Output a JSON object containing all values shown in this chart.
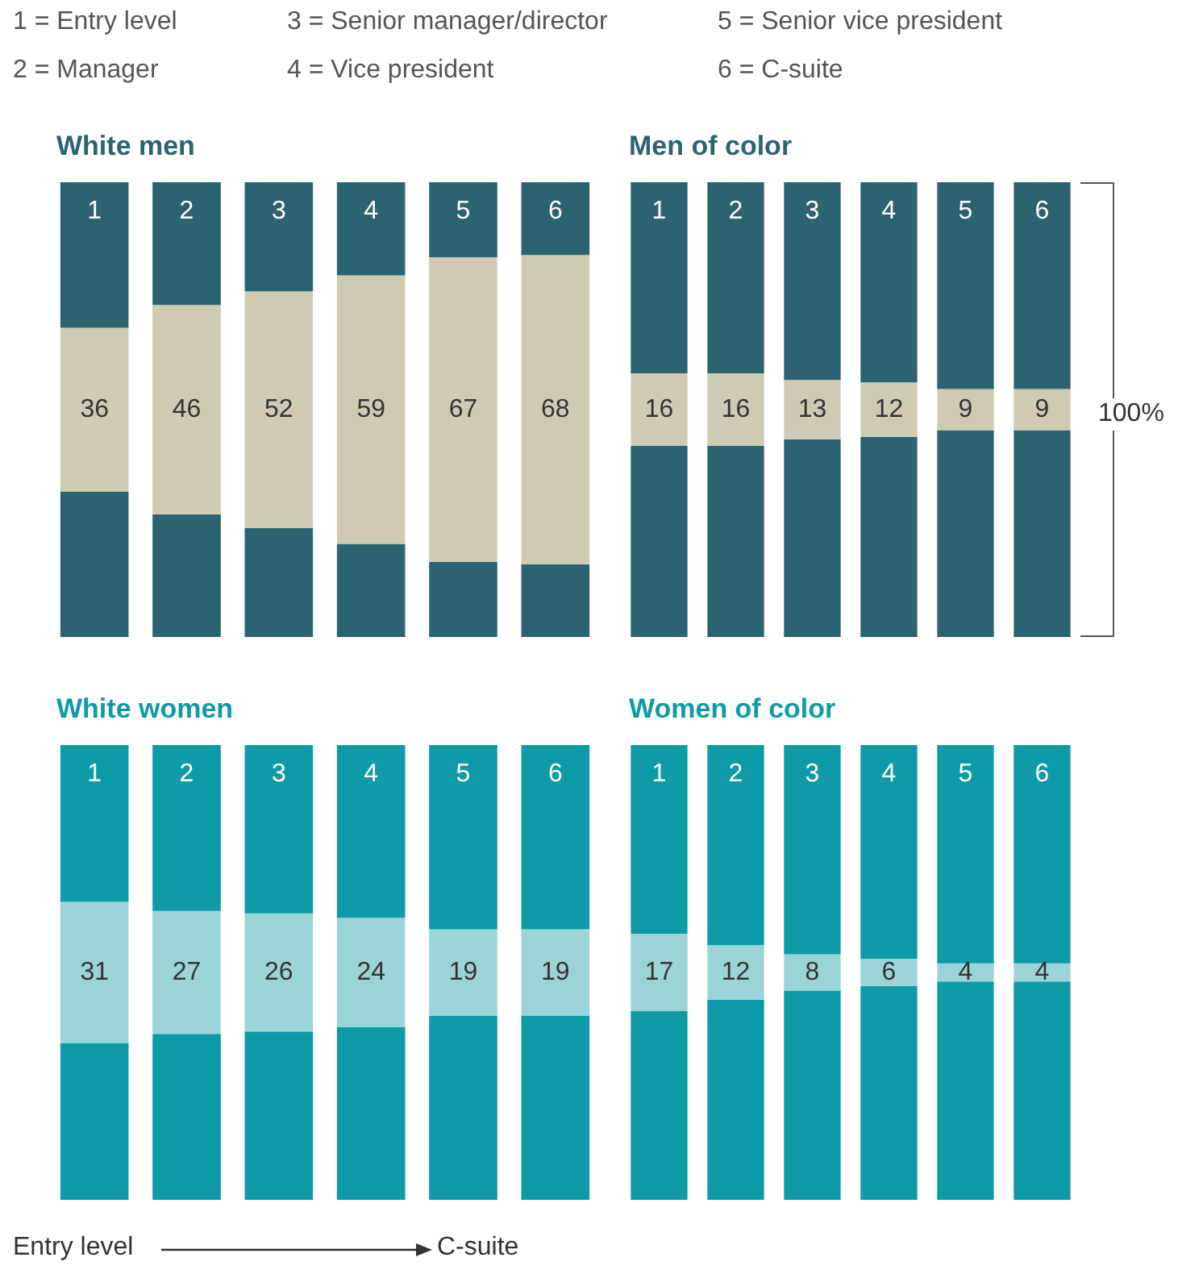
{
  "chart_data": [
    {
      "type": "bar",
      "title": "White men",
      "categories": [
        "1",
        "2",
        "3",
        "4",
        "5",
        "6"
      ],
      "stacked": true,
      "ylim": [
        0,
        100
      ],
      "tick_labels": "x",
      "annotations": [
        "1 = Entry level",
        "2 = Manager",
        "3 = Senior manager/director",
        "4 = Vice president",
        "5 = Senior vice president",
        "6 = C-suite"
      ],
      "series": [
        {
          "color": "#2b6470",
          "values": [
            32,
            27,
            24,
            20.5,
            16.5,
            16
          ]
        },
        {
          "color": "#cfcbb3",
          "values": [
            36,
            46,
            52,
            59,
            67,
            68
          ],
          "value_labels": [
            "36",
            "46",
            "52",
            "59",
            "67",
            "68"
          ]
        },
        {
          "color": "#2b6470",
          "values": [
            32,
            27,
            24,
            20.5,
            16.5,
            16
          ]
        }
      ]
    },
    {
      "type": "bar",
      "title": "Men of color",
      "categories": [
        "1",
        "2",
        "3",
        "4",
        "5",
        "6"
      ],
      "stacked": true,
      "ylim": [
        0,
        100
      ],
      "tick_labels": "x",
      "annotations": [
        "100%"
      ],
      "series": [
        {
          "color": "#2b6470",
          "values": [
            42,
            42,
            43.5,
            44,
            45.5,
            45.5
          ]
        },
        {
          "color": "#cfcbb3",
          "values": [
            16,
            16,
            13,
            12,
            9,
            9
          ],
          "value_labels": [
            "16",
            "16",
            "13",
            "12",
            "9",
            "9"
          ]
        },
        {
          "color": "#2b6470",
          "values": [
            42,
            42,
            43.5,
            44,
            45.5,
            45.5
          ]
        }
      ]
    },
    {
      "type": "bar",
      "title": "White women",
      "categories": [
        "1",
        "2",
        "3",
        "4",
        "5",
        "6"
      ],
      "stacked": true,
      "ylim": [
        0,
        100
      ],
      "tick_labels": "x",
      "annotations": [
        "Entry level",
        "C-suite"
      ],
      "series": [
        {
          "color": "#0e9aa7",
          "values": [
            34.5,
            36.5,
            37,
            38,
            40.5,
            40.5
          ]
        },
        {
          "color": "#9ad4d6",
          "values": [
            31,
            27,
            26,
            24,
            19,
            19
          ],
          "value_labels": [
            "31",
            "27",
            "26",
            "24",
            "19",
            "19"
          ]
        },
        {
          "color": "#0e9aa7",
          "values": [
            34.5,
            36.5,
            37,
            38,
            40.5,
            40.5
          ]
        }
      ]
    },
    {
      "type": "bar",
      "title": "Women of color",
      "categories": [
        "1",
        "2",
        "3",
        "4",
        "5",
        "6"
      ],
      "stacked": true,
      "ylim": [
        0,
        100
      ],
      "tick_labels": "x",
      "series": [
        {
          "color": "#0e9aa7",
          "values": [
            41.5,
            44,
            46,
            47,
            48,
            48
          ]
        },
        {
          "color": "#9ad4d6",
          "values": [
            17,
            12,
            8,
            6,
            4,
            4
          ],
          "value_labels": [
            "17",
            "12",
            "8",
            "6",
            "4",
            "4"
          ]
        },
        {
          "color": "#0e9aa7",
          "values": [
            41.5,
            44,
            46,
            47,
            48,
            48
          ]
        }
      ]
    }
  ]
}
